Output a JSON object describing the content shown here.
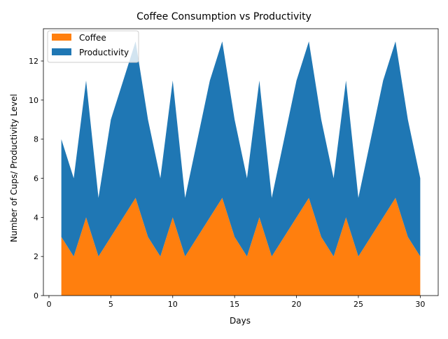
{
  "chart_data": {
    "type": "area",
    "stacked": true,
    "title": "Coffee Consumption vs Productivity",
    "xlabel": "Days",
    "ylabel": "Number of Cups/ Productivity Level",
    "x": [
      1,
      2,
      3,
      4,
      5,
      6,
      7,
      8,
      9,
      10,
      11,
      12,
      13,
      14,
      15,
      16,
      17,
      18,
      19,
      20,
      21,
      22,
      23,
      24,
      25,
      26,
      27,
      28,
      29,
      30
    ],
    "series": [
      {
        "name": "Coffee",
        "color": "#ff7f0e",
        "values": [
          3,
          2,
          4,
          2,
          3,
          4,
          5,
          3,
          2,
          4,
          2,
          3,
          4,
          5,
          3,
          2,
          4,
          2,
          3,
          4,
          5,
          3,
          2,
          4,
          2,
          3,
          4,
          5,
          3,
          2
        ]
      },
      {
        "name": "Productivity",
        "color": "#1f77b4",
        "values": [
          5,
          4,
          7,
          3,
          6,
          7,
          8,
          6,
          4,
          7,
          3,
          5,
          7,
          8,
          6,
          4,
          7,
          3,
          5,
          7,
          8,
          6,
          4,
          7,
          3,
          5,
          7,
          8,
          6,
          4
        ]
      }
    ],
    "xlim": [
      -0.45,
      31.45
    ],
    "ylim": [
      0,
      13.65
    ],
    "xticks": [
      0,
      5,
      10,
      15,
      20,
      25,
      30
    ],
    "yticks": [
      0,
      2,
      4,
      6,
      8,
      10,
      12
    ],
    "grid": false,
    "legend_position": "top-left"
  }
}
